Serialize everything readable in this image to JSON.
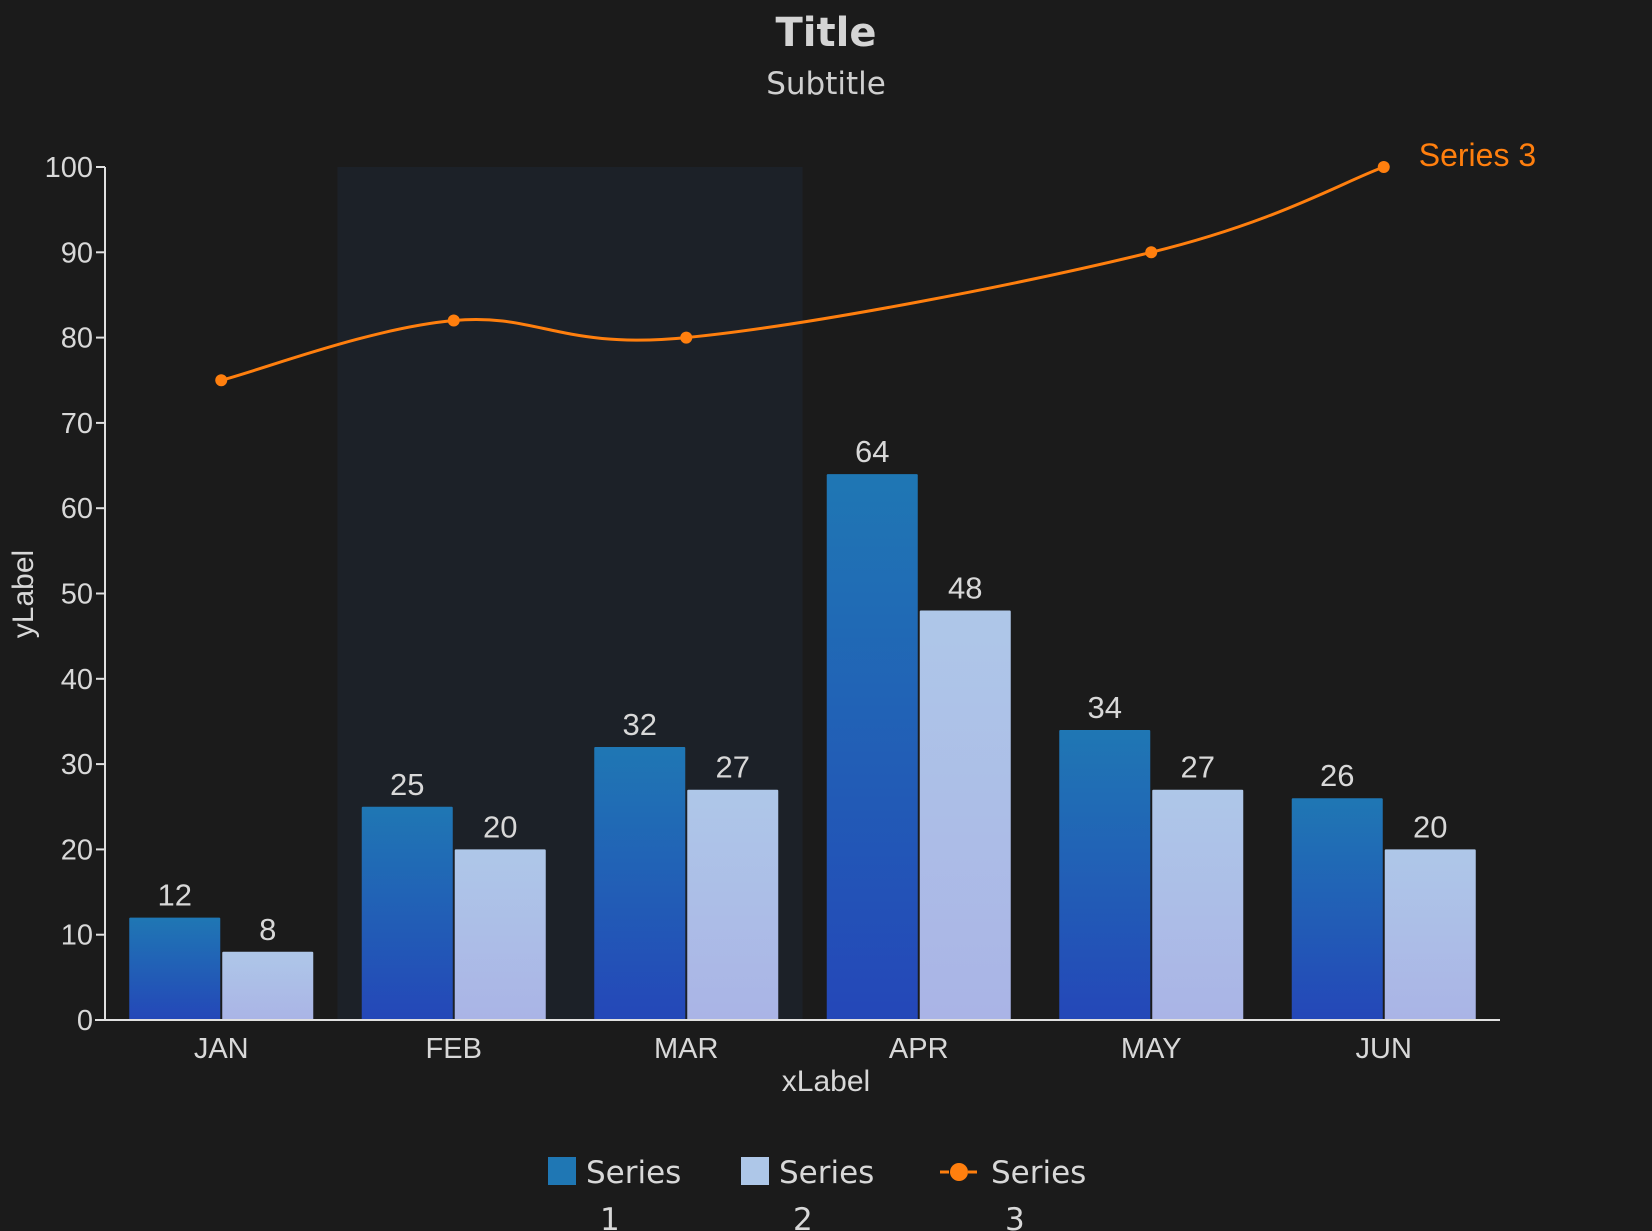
{
  "chart_data": {
    "type": "bar",
    "title": "Title",
    "subtitle": "Subtitle",
    "xlabel": "xLabel",
    "ylabel": "yLabel",
    "categories": [
      "JAN",
      "FEB",
      "MAR",
      "APR",
      "MAY",
      "JUN"
    ],
    "ylim": [
      0,
      100
    ],
    "yticks": [
      0,
      10,
      20,
      30,
      40,
      50,
      60,
      70,
      80,
      90,
      100
    ],
    "grid": false,
    "highlight_band": {
      "from_category": "FEB",
      "to_category": "MAR",
      "color": "#1c2128"
    },
    "series": [
      {
        "name": "Series 1",
        "type": "bar",
        "values": [
          12,
          25,
          32,
          64,
          34,
          26
        ],
        "color": "#1f77b4",
        "color_bottom": "#2447b8",
        "show_labels": true
      },
      {
        "name": "Series 2",
        "type": "bar",
        "values": [
          8,
          20,
          27,
          48,
          27,
          20
        ],
        "color": "#aec7e8",
        "color_bottom": "#aab4e6",
        "show_labels": true
      },
      {
        "name": "Series 3",
        "type": "line",
        "values": [
          75,
          82,
          80,
          null,
          90,
          100
        ],
        "color": "#ff7f0e",
        "smooth": true,
        "end_label": "Series 3"
      }
    ],
    "legend": {
      "position": "bottom-center",
      "items": [
        {
          "label": "Series",
          "sublabel": "1",
          "marker": "square",
          "color": "#1f77b4"
        },
        {
          "label": "Series",
          "sublabel": "2",
          "marker": "square",
          "color": "#aec7e8"
        },
        {
          "label": "Series",
          "sublabel": "3",
          "marker": "line-dot",
          "color": "#ff7f0e"
        }
      ]
    },
    "colors": {
      "background": "#1b1b1b",
      "axis": "#e0e0e0",
      "text": "#d8d8d8"
    }
  }
}
